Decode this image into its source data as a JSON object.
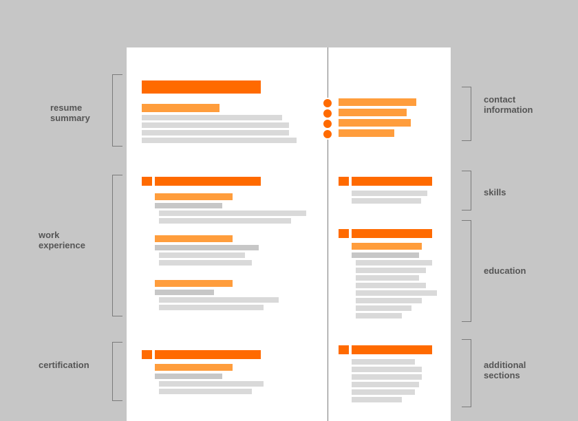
{
  "labels": {
    "resume_summary": "resume\nsummary",
    "work_experience": "work\nexperience",
    "certification": "certification",
    "contact_information": "contact\ninformation",
    "skills": "skills",
    "education": "education",
    "additional_sections": "additional\nsections"
  },
  "colors": {
    "background": "#c6c6c6",
    "page": "#ffffff",
    "heading_bar": "#ff6a00",
    "subheading_bar": "#ff9d3c",
    "text_placeholder": "#d9d9d9",
    "label_text": "#555555"
  }
}
